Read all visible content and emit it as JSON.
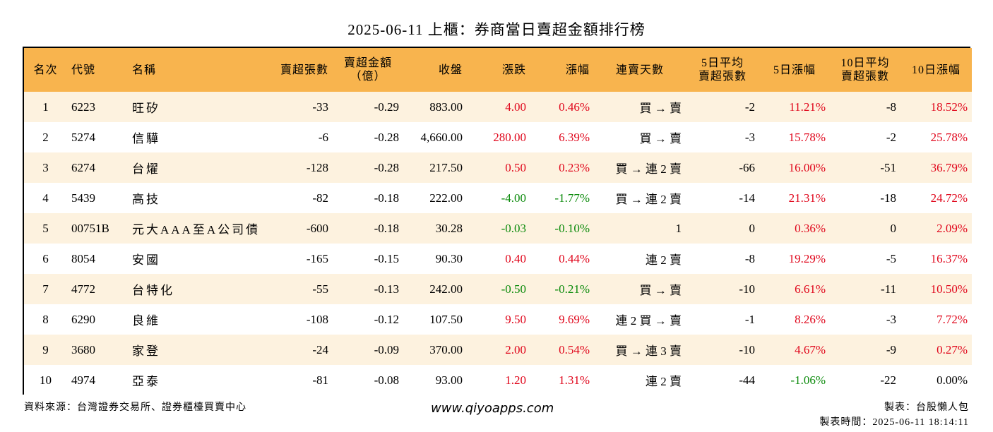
{
  "title": "2025-06-11 上櫃：券商當日賣超金額排行榜",
  "headers": {
    "rank": "名次",
    "code": "代號",
    "name": "名稱",
    "sell_shares": "賣超張數",
    "sell_amount_1": "賣超金額",
    "sell_amount_2": "（億）",
    "close": "收盤",
    "change": "漲跌",
    "change_pct": "漲幅",
    "streak": "連賣天數",
    "avg5_1": "5日平均",
    "avg5_2": "賣超張數",
    "pct5": "5日漲幅",
    "avg10_1": "10日平均",
    "avg10_2": "賣超張數",
    "pct10": "10日漲幅"
  },
  "rows": [
    {
      "rank": "1",
      "code": "6223",
      "name": "旺矽",
      "sell_shares": "-33",
      "sell_amount": "-0.29",
      "close": "883.00",
      "change": "4.00",
      "change_color": "pos",
      "change_pct": "0.46%",
      "change_pct_color": "pos",
      "streak": "買 → 賣",
      "avg5": "-2",
      "pct5": "11.21%",
      "pct5_color": "pos",
      "avg10": "-8",
      "pct10": "18.52%",
      "pct10_color": "pos"
    },
    {
      "rank": "2",
      "code": "5274",
      "name": "信驊",
      "sell_shares": "-6",
      "sell_amount": "-0.28",
      "close": "4,660.00",
      "change": "280.00",
      "change_color": "pos",
      "change_pct": "6.39%",
      "change_pct_color": "pos",
      "streak": "買 → 賣",
      "avg5": "-3",
      "pct5": "15.78%",
      "pct5_color": "pos",
      "avg10": "-2",
      "pct10": "25.78%",
      "pct10_color": "pos"
    },
    {
      "rank": "3",
      "code": "6274",
      "name": "台燿",
      "sell_shares": "-128",
      "sell_amount": "-0.28",
      "close": "217.50",
      "change": "0.50",
      "change_color": "pos",
      "change_pct": "0.23%",
      "change_pct_color": "pos",
      "streak": "買 → 連 2 賣",
      "avg5": "-66",
      "pct5": "16.00%",
      "pct5_color": "pos",
      "avg10": "-51",
      "pct10": "36.79%",
      "pct10_color": "pos"
    },
    {
      "rank": "4",
      "code": "5439",
      "name": "高技",
      "sell_shares": "-82",
      "sell_amount": "-0.18",
      "close": "222.00",
      "change": "-4.00",
      "change_color": "neg",
      "change_pct": "-1.77%",
      "change_pct_color": "neg",
      "streak": "買 → 連 2 賣",
      "avg5": "-14",
      "pct5": "21.31%",
      "pct5_color": "pos",
      "avg10": "-18",
      "pct10": "24.72%",
      "pct10_color": "pos"
    },
    {
      "rank": "5",
      "code": "00751B",
      "name": "元大AAA至A公司債",
      "sell_shares": "-600",
      "sell_amount": "-0.18",
      "close": "30.28",
      "change": "-0.03",
      "change_color": "neg",
      "change_pct": "-0.10%",
      "change_pct_color": "neg",
      "streak": "1",
      "avg5": "0",
      "pct5": "0.36%",
      "pct5_color": "pos",
      "avg10": "0",
      "pct10": "2.09%",
      "pct10_color": "pos"
    },
    {
      "rank": "6",
      "code": "8054",
      "name": "安國",
      "sell_shares": "-165",
      "sell_amount": "-0.15",
      "close": "90.30",
      "change": "0.40",
      "change_color": "pos",
      "change_pct": "0.44%",
      "change_pct_color": "pos",
      "streak": "連 2 賣",
      "avg5": "-8",
      "pct5": "19.29%",
      "pct5_color": "pos",
      "avg10": "-5",
      "pct10": "16.37%",
      "pct10_color": "pos"
    },
    {
      "rank": "7",
      "code": "4772",
      "name": "台特化",
      "sell_shares": "-55",
      "sell_amount": "-0.13",
      "close": "242.00",
      "change": "-0.50",
      "change_color": "neg",
      "change_pct": "-0.21%",
      "change_pct_color": "neg",
      "streak": "買 → 賣",
      "avg5": "-10",
      "pct5": "6.61%",
      "pct5_color": "pos",
      "avg10": "-11",
      "pct10": "10.50%",
      "pct10_color": "pos"
    },
    {
      "rank": "8",
      "code": "6290",
      "name": "良維",
      "sell_shares": "-108",
      "sell_amount": "-0.12",
      "close": "107.50",
      "change": "9.50",
      "change_color": "pos",
      "change_pct": "9.69%",
      "change_pct_color": "pos",
      "streak": "連 2 買 → 賣",
      "avg5": "-1",
      "pct5": "8.26%",
      "pct5_color": "pos",
      "avg10": "-3",
      "pct10": "7.72%",
      "pct10_color": "pos"
    },
    {
      "rank": "9",
      "code": "3680",
      "name": "家登",
      "sell_shares": "-24",
      "sell_amount": "-0.09",
      "close": "370.00",
      "change": "2.00",
      "change_color": "pos",
      "change_pct": "0.54%",
      "change_pct_color": "pos",
      "streak": "買 → 連 3 賣",
      "avg5": "-10",
      "pct5": "4.67%",
      "pct5_color": "pos",
      "avg10": "-9",
      "pct10": "0.27%",
      "pct10_color": "pos"
    },
    {
      "rank": "10",
      "code": "4974",
      "name": "亞泰",
      "sell_shares": "-81",
      "sell_amount": "-0.08",
      "close": "93.00",
      "change": "1.20",
      "change_color": "pos",
      "change_pct": "1.31%",
      "change_pct_color": "pos",
      "streak": "連 2 賣",
      "avg5": "-44",
      "pct5": "-1.06%",
      "pct5_color": "neg",
      "avg10": "-22",
      "pct10": "0.00%",
      "pct10_color": "neu"
    }
  ],
  "footer": {
    "source": "資料來源：台灣證券交易所、證券櫃檯買賣中心",
    "website": "www.qiyoapps.com",
    "maker": "製表：台股懶人包",
    "time": "製表時間：2025-06-11 18:14:11"
  }
}
